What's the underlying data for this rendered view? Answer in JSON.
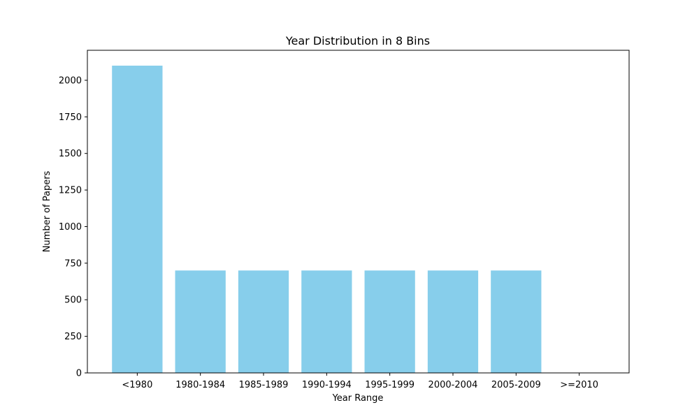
{
  "chart_data": {
    "type": "bar",
    "title": "Year Distribution in 8 Bins",
    "xlabel": "Year Range",
    "ylabel": "Number of Papers",
    "categories": [
      "<1980",
      "1980-1984",
      "1985-1989",
      "1990-1994",
      "1995-1999",
      "2000-2004",
      "2005-2009",
      ">=2010"
    ],
    "values": [
      2100,
      700,
      700,
      700,
      700,
      700,
      700,
      0
    ],
    "ylim": [
      0,
      2205
    ],
    "yticks": [
      0,
      250,
      500,
      750,
      1000,
      1250,
      1500,
      1750,
      2000
    ],
    "bar_color": "#87ceeb",
    "grid": false
  }
}
